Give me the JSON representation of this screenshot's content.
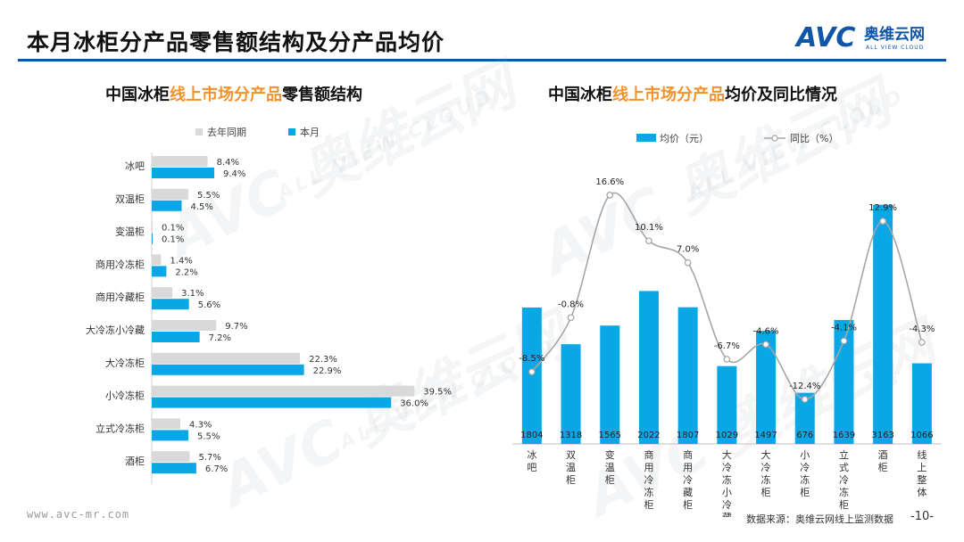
{
  "slide": {
    "title": "本月冰柜分产品零售额结构及分产品均价",
    "left_title_a": "中国冰柜",
    "left_title_b": "线上市场分产品",
    "left_title_c": "零售额结构",
    "right_title_a": "中国冰柜",
    "right_title_b": "线上市场分产品",
    "right_title_c": "均价及同比情况",
    "footer_url": "www.avc-mr.com",
    "footer_source": "数据来源：奥维云网线上监测数据",
    "page_number": "-10-",
    "logo_text": "AVC",
    "logo_cn": "奥维云网",
    "logo_en": "ALL VIEW CLOUD",
    "colors": {
      "accent": "#f0932b",
      "brand": "#0f55a8",
      "blue": "#0aa7e6",
      "grey": "#d9d9d9",
      "line": "#a6a6a6"
    }
  },
  "chart_data": [
    {
      "type": "bar",
      "orientation": "horizontal",
      "title": "中国冰柜线上市场分产品零售额结构",
      "categories": [
        "冰吧",
        "双温柜",
        "变温柜",
        "商用冷冻柜",
        "商用冷藏柜",
        "大冷冻小冷藏",
        "大冷冻柜",
        "小冷冻柜",
        "立式冷冻柜",
        "酒柜"
      ],
      "series": [
        {
          "name": "去年同期",
          "values": [
            8.4,
            5.5,
            0.1,
            1.4,
            3.1,
            9.7,
            22.3,
            39.5,
            4.3,
            5.7
          ],
          "labels": [
            "8.4%",
            "5.5%",
            "0.1%",
            "1.4%",
            "3.1%",
            "9.7%",
            "22.3%",
            "39.5%",
            "4.3%",
            "5.7%"
          ],
          "color": "#d9d9d9"
        },
        {
          "name": "本月",
          "values": [
            9.4,
            4.5,
            0.1,
            2.2,
            5.6,
            7.2,
            22.9,
            36.0,
            5.5,
            6.7
          ],
          "labels": [
            "9.4%",
            "4.5%",
            "0.1%",
            "2.2%",
            "5.6%",
            "7.2%",
            "22.9%",
            "36.0%",
            "5.5%",
            "6.7%"
          ],
          "color": "#0aa7e6"
        }
      ],
      "xlim": [
        0,
        40
      ],
      "legend": "top"
    },
    {
      "type": "bar",
      "title": "中国冰柜线上市场分产品均价及同比情况",
      "categories": [
        "冰吧",
        "双温柜",
        "变温柜",
        "商用冷冻柜",
        "商用冷藏柜",
        "大冷冻小冷藏",
        "大冷冻柜",
        "小冷冻柜",
        "立式冷冻柜",
        "酒柜",
        "线上整体"
      ],
      "series": [
        {
          "name": "均价（元）",
          "kind": "bar",
          "values": [
            1804,
            1318,
            1565,
            2022,
            1807,
            1029,
            1497,
            676,
            1639,
            3163,
            1066
          ],
          "color": "#0aa7e6"
        },
        {
          "name": "同比（%）",
          "kind": "line",
          "values": [
            -8.5,
            -0.8,
            16.6,
            10.1,
            7.0,
            -6.7,
            -4.6,
            -12.4,
            -4.1,
            12.9,
            -4.3
          ],
          "labels": [
            "-8.5%",
            "-0.8%",
            "16.6%",
            "10.1%",
            "7.0%",
            "-6.7%",
            "-4.6%",
            "-12.4%",
            "-4.1%",
            "12.9%",
            "-4.3%"
          ],
          "color": "#a6a6a6"
        }
      ],
      "ylim": [
        0,
        3300
      ],
      "y2lim": [
        -16,
        20
      ],
      "legend": "top"
    }
  ]
}
